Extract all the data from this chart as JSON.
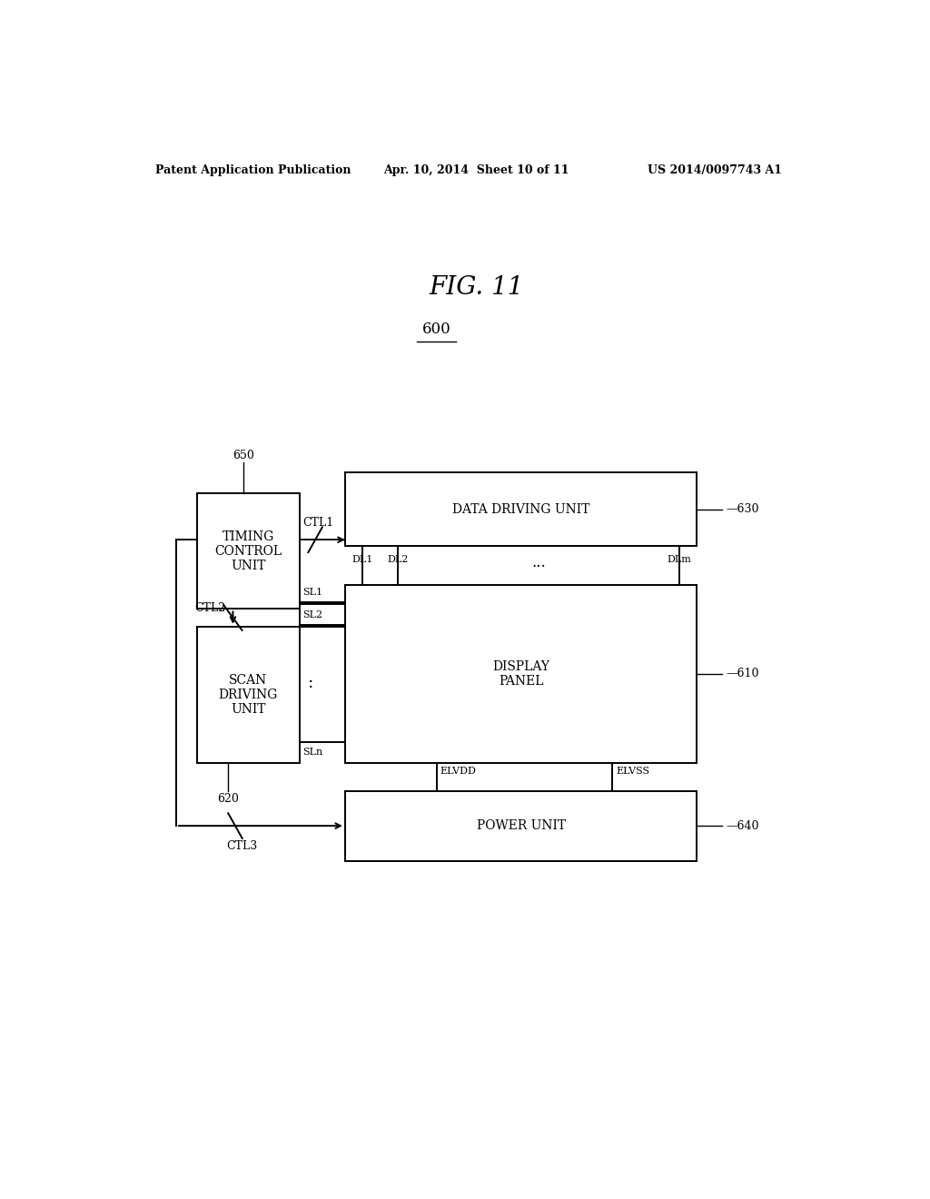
{
  "bg_color": "#ffffff",
  "header_left": "Patent Application Publication",
  "header_mid": "Apr. 10, 2014  Sheet 10 of 11",
  "header_right": "US 2014/0097743 A1",
  "fig_title": "FIG. 11",
  "system_label": "600",
  "lw": 1.4,
  "label_fs": 10,
  "small_fs": 9,
  "header_fs": 9,
  "title_fs": 20
}
